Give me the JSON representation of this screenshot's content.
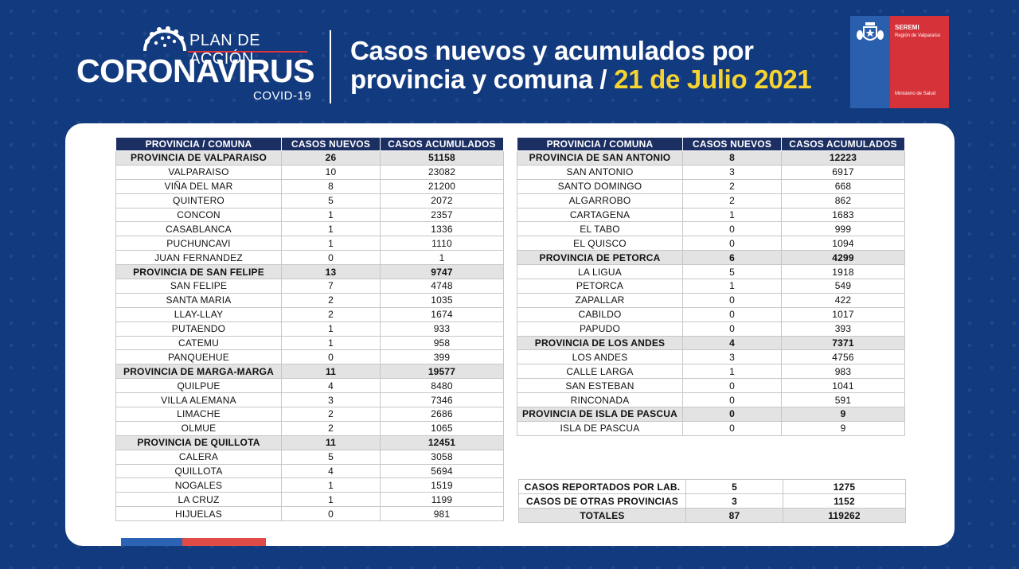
{
  "header": {
    "logo": {
      "plan": "PLAN DE ACCIÓN",
      "brand": "CORONAVIRUS",
      "sub": "COVID-19"
    },
    "title_line1": "Casos nuevos y acumulados por",
    "title_line2": "provincia y comuna",
    "title_sep": " / ",
    "title_date": "21 de Julio 2021",
    "seremi": {
      "name": "SEREMI",
      "region": "Región de Valparaíso",
      "ministry": "Ministerio de Salud"
    }
  },
  "colors": {
    "background": "#123a7e",
    "table_header": "#1c2f63",
    "province_row": "#e3e3e3",
    "date_accent": "#f6d330",
    "seremi_red": "#d6323a",
    "seremi_blue": "#2a5fae"
  },
  "columns": [
    "PROVINCIA / COMUNA",
    "CASOS NUEVOS",
    "CASOS ACUMULADOS"
  ],
  "left_table": [
    {
      "name": "PROVINCIA DE VALPARAISO",
      "nuevos": "26",
      "acumulados": "51158",
      "is_province": true
    },
    {
      "name": "VALPARAISO",
      "nuevos": "10",
      "acumulados": "23082",
      "is_province": false
    },
    {
      "name": "VIÑA DEL MAR",
      "nuevos": "8",
      "acumulados": "21200",
      "is_province": false
    },
    {
      "name": "QUINTERO",
      "nuevos": "5",
      "acumulados": "2072",
      "is_province": false
    },
    {
      "name": "CONCON",
      "nuevos": "1",
      "acumulados": "2357",
      "is_province": false
    },
    {
      "name": "CASABLANCA",
      "nuevos": "1",
      "acumulados": "1336",
      "is_province": false
    },
    {
      "name": "PUCHUNCAVI",
      "nuevos": "1",
      "acumulados": "1110",
      "is_province": false
    },
    {
      "name": "JUAN FERNANDEZ",
      "nuevos": "0",
      "acumulados": "1",
      "is_province": false
    },
    {
      "name": "PROVINCIA DE SAN FELIPE",
      "nuevos": "13",
      "acumulados": "9747",
      "is_province": true
    },
    {
      "name": "SAN FELIPE",
      "nuevos": "7",
      "acumulados": "4748",
      "is_province": false
    },
    {
      "name": "SANTA MARIA",
      "nuevos": "2",
      "acumulados": "1035",
      "is_province": false
    },
    {
      "name": "LLAY-LLAY",
      "nuevos": "2",
      "acumulados": "1674",
      "is_province": false
    },
    {
      "name": "PUTAENDO",
      "nuevos": "1",
      "acumulados": "933",
      "is_province": false
    },
    {
      "name": "CATEMU",
      "nuevos": "1",
      "acumulados": "958",
      "is_province": false
    },
    {
      "name": "PANQUEHUE",
      "nuevos": "0",
      "acumulados": "399",
      "is_province": false
    },
    {
      "name": "PROVINCIA DE MARGA-MARGA",
      "nuevos": "11",
      "acumulados": "19577",
      "is_province": true
    },
    {
      "name": "QUILPUE",
      "nuevos": "4",
      "acumulados": "8480",
      "is_province": false
    },
    {
      "name": "VILLA ALEMANA",
      "nuevos": "3",
      "acumulados": "7346",
      "is_province": false
    },
    {
      "name": "LIMACHE",
      "nuevos": "2",
      "acumulados": "2686",
      "is_province": false
    },
    {
      "name": "OLMUE",
      "nuevos": "2",
      "acumulados": "1065",
      "is_province": false
    },
    {
      "name": "PROVINCIA DE QUILLOTA",
      "nuevos": "11",
      "acumulados": "12451",
      "is_province": true
    },
    {
      "name": "CALERA",
      "nuevos": "5",
      "acumulados": "3058",
      "is_province": false
    },
    {
      "name": "QUILLOTA",
      "nuevos": "4",
      "acumulados": "5694",
      "is_province": false
    },
    {
      "name": "NOGALES",
      "nuevos": "1",
      "acumulados": "1519",
      "is_province": false
    },
    {
      "name": "LA CRUZ",
      "nuevos": "1",
      "acumulados": "1199",
      "is_province": false
    },
    {
      "name": "HIJUELAS",
      "nuevos": "0",
      "acumulados": "981",
      "is_province": false
    }
  ],
  "right_table": [
    {
      "name": "PROVINCIA DE SAN ANTONIO",
      "nuevos": "8",
      "acumulados": "12223",
      "is_province": true
    },
    {
      "name": "SAN ANTONIO",
      "nuevos": "3",
      "acumulados": "6917",
      "is_province": false
    },
    {
      "name": "SANTO DOMINGO",
      "nuevos": "2",
      "acumulados": "668",
      "is_province": false
    },
    {
      "name": "ALGARROBO",
      "nuevos": "2",
      "acumulados": "862",
      "is_province": false
    },
    {
      "name": "CARTAGENA",
      "nuevos": "1",
      "acumulados": "1683",
      "is_province": false
    },
    {
      "name": "EL TABO",
      "nuevos": "0",
      "acumulados": "999",
      "is_province": false
    },
    {
      "name": "EL QUISCO",
      "nuevos": "0",
      "acumulados": "1094",
      "is_province": false
    },
    {
      "name": "PROVINCIA DE PETORCA",
      "nuevos": "6",
      "acumulados": "4299",
      "is_province": true
    },
    {
      "name": "LA LIGUA",
      "nuevos": "5",
      "acumulados": "1918",
      "is_province": false
    },
    {
      "name": "PETORCA",
      "nuevos": "1",
      "acumulados": "549",
      "is_province": false
    },
    {
      "name": "ZAPALLAR",
      "nuevos": "0",
      "acumulados": "422",
      "is_province": false
    },
    {
      "name": "CABILDO",
      "nuevos": "0",
      "acumulados": "1017",
      "is_province": false
    },
    {
      "name": "PAPUDO",
      "nuevos": "0",
      "acumulados": "393",
      "is_province": false
    },
    {
      "name": "PROVINCIA DE LOS ANDES",
      "nuevos": "4",
      "acumulados": "7371",
      "is_province": true
    },
    {
      "name": "LOS ANDES",
      "nuevos": "3",
      "acumulados": "4756",
      "is_province": false
    },
    {
      "name": "CALLE LARGA",
      "nuevos": "1",
      "acumulados": "983",
      "is_province": false
    },
    {
      "name": "SAN ESTEBAN",
      "nuevos": "0",
      "acumulados": "1041",
      "is_province": false
    },
    {
      "name": "RINCONADA",
      "nuevos": "0",
      "acumulados": "591",
      "is_province": false
    },
    {
      "name": "PROVINCIA DE ISLA DE PASCUA",
      "nuevos": "0",
      "acumulados": "9",
      "is_province": true
    },
    {
      "name": "ISLA DE PASCUA",
      "nuevos": "0",
      "acumulados": "9",
      "is_province": false
    }
  ],
  "totals": [
    {
      "name": "CASOS REPORTADOS POR LAB.",
      "nuevos": "5",
      "acumulados": "1275",
      "is_total": false
    },
    {
      "name": "CASOS DE OTRAS PROVINCIAS",
      "nuevos": "3",
      "acumulados": "1152",
      "is_total": false
    },
    {
      "name": "TOTALES",
      "nuevos": "87",
      "acumulados": "119262",
      "is_total": true
    }
  ]
}
